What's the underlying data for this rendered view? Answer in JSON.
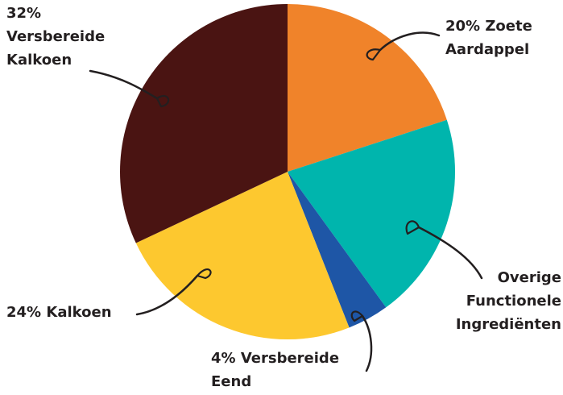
{
  "chart_data": {
    "type": "pie",
    "categories": [
      "Zoete Aardappel",
      "Overige Functionele Ingrediënten",
      "Versbereide Eend",
      "Kalkoen",
      "Versbereide Kalkoen"
    ],
    "values": [
      20,
      20,
      4,
      24,
      32
    ],
    "value_labels": [
      "20%",
      null,
      "4%",
      "24%",
      "32%"
    ],
    "colors": [
      "#f0832a",
      "#00b5ad",
      "#1e56a6",
      "#fdc82f",
      "#4a1412"
    ]
  }
}
